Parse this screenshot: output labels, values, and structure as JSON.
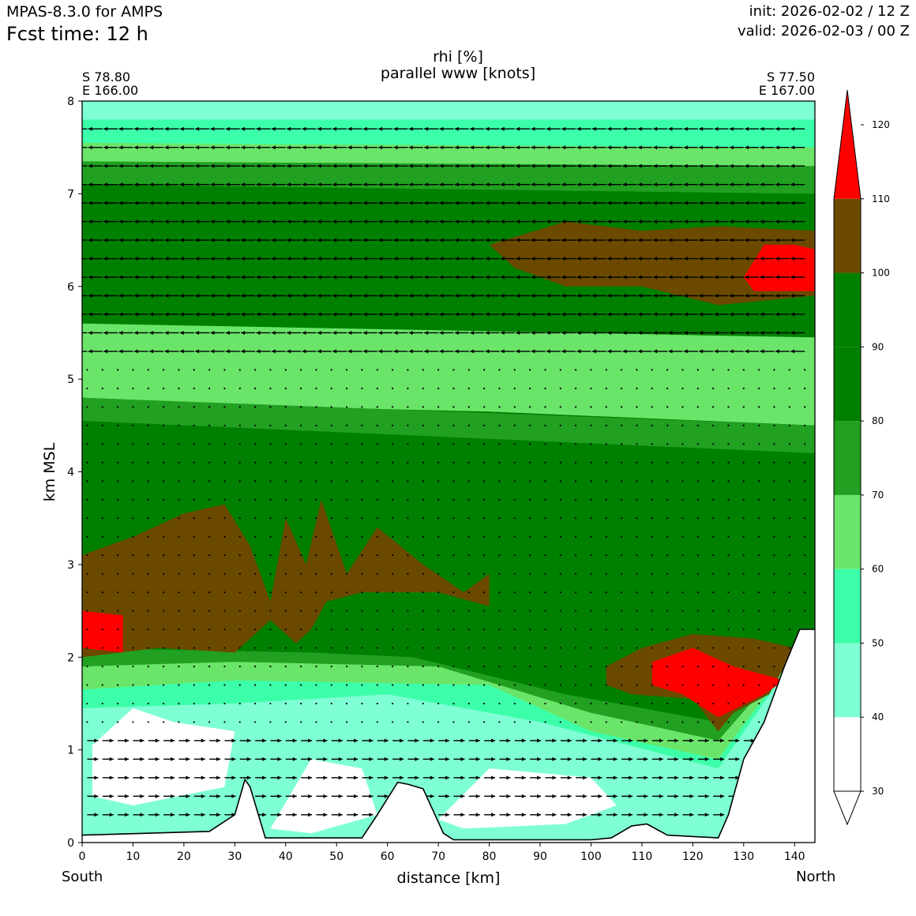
{
  "header": {
    "model": "MPAS-8.3.0 for AMPS",
    "fcst_label": "Fcst time:   12 h",
    "init": "init: 2026-02-02 / 12 Z",
    "valid": "valid: 2026-02-03 / 00 Z"
  },
  "endpoints": {
    "start_lat": "S 78.80",
    "start_lon": "E 166.00",
    "end_lat": "S 77.50",
    "end_lon": "E 167.00",
    "start_dir": "South",
    "end_dir": "North"
  },
  "chart_data": {
    "type": "contourf",
    "title": "rhi [%]",
    "subtitle": "parallel www [knots]",
    "xlabel": "distance [km]",
    "ylabel": "km MSL",
    "xlim": [
      0,
      144
    ],
    "ylim": [
      0,
      8
    ],
    "xticks": [
      0,
      10,
      20,
      30,
      40,
      50,
      60,
      70,
      80,
      90,
      100,
      110,
      120,
      130,
      140
    ],
    "yticks": [
      0,
      1,
      2,
      3,
      4,
      5,
      6,
      7,
      8
    ],
    "colorbar": {
      "levels": [
        30,
        40,
        50,
        60,
        70,
        80,
        90,
        100,
        110,
        120
      ],
      "colors": [
        "#ffffff",
        "#7fffd4",
        "#3cffaa",
        "#6ae56a",
        "#21a021",
        "#008000",
        "#008000",
        "#6b4a00",
        "#ff0000"
      ],
      "extend": "both"
    },
    "terrain": [
      [
        0,
        0.08
      ],
      [
        25,
        0.12
      ],
      [
        30,
        0.3
      ],
      [
        32,
        0.68
      ],
      [
        33,
        0.6
      ],
      [
        36,
        0.05
      ],
      [
        45,
        0.05
      ],
      [
        55,
        0.05
      ],
      [
        58,
        0.3
      ],
      [
        62,
        0.65
      ],
      [
        64,
        0.63
      ],
      [
        67,
        0.58
      ],
      [
        71,
        0.1
      ],
      [
        73,
        0.03
      ],
      [
        100,
        0.03
      ],
      [
        104,
        0.05
      ],
      [
        108,
        0.18
      ],
      [
        111,
        0.2
      ],
      [
        115,
        0.08
      ],
      [
        125,
        0.05
      ],
      [
        127,
        0.3
      ],
      [
        130,
        0.9
      ],
      [
        134,
        1.3
      ],
      [
        138,
        1.9
      ],
      [
        141,
        2.3
      ],
      [
        144,
        2.3
      ]
    ],
    "rhi_regions": [
      {
        "level": "40-50",
        "polygon": [
          [
            0,
            0.1
          ],
          [
            0,
            1.8
          ],
          [
            144,
            1.8
          ],
          [
            144,
            0.05
          ],
          [
            0,
            0.05
          ]
        ]
      },
      {
        "level": "50-60",
        "polygon": [
          [
            0,
            1.45
          ],
          [
            30,
            1.5
          ],
          [
            60,
            1.6
          ],
          [
            90,
            1.3
          ],
          [
            125,
            0.8
          ],
          [
            144,
            2.3
          ],
          [
            144,
            7.8
          ],
          [
            0,
            7.8
          ]
        ]
      },
      {
        "level": "60-70",
        "polygon": [
          [
            0,
            1.65
          ],
          [
            30,
            1.75
          ],
          [
            80,
            1.7
          ],
          [
            100,
            1.2
          ],
          [
            125,
            0.9
          ],
          [
            144,
            2.3
          ],
          [
            144,
            7.5
          ],
          [
            0,
            7.55
          ]
        ]
      },
      {
        "level": "70-80",
        "polygon": [
          [
            0,
            1.9
          ],
          [
            30,
            1.95
          ],
          [
            70,
            1.9
          ],
          [
            100,
            1.4
          ],
          [
            125,
            1.1
          ],
          [
            144,
            2.3
          ],
          [
            144,
            7.3
          ],
          [
            0,
            7.35
          ]
        ]
      },
      {
        "level": "80-100",
        "polygon": [
          [
            0,
            2.1
          ],
          [
            45,
            2.05
          ],
          [
            65,
            2.0
          ],
          [
            95,
            1.6
          ],
          [
            125,
            1.3
          ],
          [
            144,
            2.3
          ],
          [
            144,
            7.0
          ],
          [
            0,
            7.1
          ]
        ]
      },
      {
        "level": "60-70",
        "polygon": [
          [
            0,
            4.8
          ],
          [
            40,
            4.7
          ],
          [
            80,
            4.65
          ],
          [
            144,
            4.5
          ],
          [
            144,
            5.45
          ],
          [
            0,
            5.6
          ]
        ]
      },
      {
        "level": "70-80",
        "polygon": [
          [
            0,
            4.55
          ],
          [
            144,
            4.2
          ],
          [
            144,
            4.5
          ],
          [
            0,
            4.8
          ]
        ]
      },
      {
        "level": "100-110",
        "polygon": [
          [
            0,
            2.0
          ],
          [
            0,
            3.1
          ],
          [
            10,
            3.3
          ],
          [
            20,
            3.55
          ],
          [
            28,
            3.65
          ],
          [
            33,
            3.2
          ],
          [
            37,
            2.6
          ],
          [
            40,
            3.5
          ],
          [
            44,
            3.0
          ],
          [
            47,
            3.7
          ],
          [
            52,
            2.9
          ],
          [
            58,
            3.4
          ],
          [
            67,
            3.0
          ],
          [
            75,
            2.7
          ],
          [
            80,
            2.9
          ],
          [
            80,
            2.55
          ],
          [
            70,
            2.7
          ],
          [
            55,
            2.7
          ],
          [
            48,
            2.6
          ],
          [
            45,
            2.3
          ],
          [
            42,
            2.15
          ],
          [
            37,
            2.4
          ],
          [
            30,
            2.05
          ],
          [
            15,
            2.1
          ],
          [
            0,
            2.0
          ]
        ]
      },
      {
        "level": "110-120",
        "polygon": [
          [
            0,
            2.1
          ],
          [
            0,
            2.5
          ],
          [
            8,
            2.45
          ],
          [
            8,
            2.05
          ]
        ]
      },
      {
        "level": "100-110",
        "polygon": [
          [
            80,
            6.45
          ],
          [
            95,
            6.7
          ],
          [
            110,
            6.6
          ],
          [
            125,
            6.65
          ],
          [
            144,
            6.6
          ],
          [
            144,
            5.9
          ],
          [
            125,
            5.8
          ],
          [
            110,
            6.0
          ],
          [
            95,
            6.0
          ],
          [
            85,
            6.2
          ]
        ]
      },
      {
        "level": "110-120",
        "polygon": [
          [
            130,
            6.1
          ],
          [
            134,
            6.45
          ],
          [
            140,
            6.45
          ],
          [
            144,
            6.4
          ],
          [
            144,
            5.95
          ],
          [
            132,
            5.95
          ]
        ]
      },
      {
        "level": "100-110",
        "polygon": [
          [
            103,
            1.9
          ],
          [
            110,
            2.1
          ],
          [
            120,
            2.25
          ],
          [
            132,
            2.2
          ],
          [
            140,
            2.1
          ],
          [
            135,
            1.6
          ],
          [
            128,
            1.4
          ],
          [
            125,
            1.2
          ],
          [
            120,
            1.55
          ],
          [
            108,
            1.6
          ],
          [
            103,
            1.7
          ]
        ]
      },
      {
        "level": "110-120",
        "polygon": [
          [
            112,
            1.95
          ],
          [
            120,
            2.1
          ],
          [
            128,
            1.9
          ],
          [
            138,
            1.75
          ],
          [
            134,
            1.6
          ],
          [
            125,
            1.35
          ],
          [
            118,
            1.6
          ],
          [
            112,
            1.7
          ]
        ]
      },
      {
        "level": "30-40",
        "polygon": [
          [
            2,
            1.05
          ],
          [
            10,
            1.45
          ],
          [
            18,
            1.3
          ],
          [
            30,
            1.2
          ],
          [
            28,
            0.6
          ],
          [
            10,
            0.4
          ],
          [
            2,
            0.5
          ]
        ]
      },
      {
        "level": "30-40",
        "polygon": [
          [
            37,
            0.15
          ],
          [
            45,
            0.9
          ],
          [
            55,
            0.8
          ],
          [
            58,
            0.3
          ],
          [
            45,
            0.1
          ]
        ]
      },
      {
        "level": "30-40",
        "polygon": [
          [
            70,
            0.25
          ],
          [
            80,
            0.8
          ],
          [
            100,
            0.7
          ],
          [
            105,
            0.4
          ],
          [
            95,
            0.2
          ],
          [
            75,
            0.15
          ]
        ]
      }
    ],
    "wind_field": {
      "upper_layer_knots": {
        "range_km": [
          5.2,
          8.0
        ],
        "direction": "northerly (toward South)"
      },
      "lower_layer_knots": {
        "range_km": [
          0.3,
          1.2
        ],
        "direction": "southerly (toward North)"
      }
    }
  }
}
